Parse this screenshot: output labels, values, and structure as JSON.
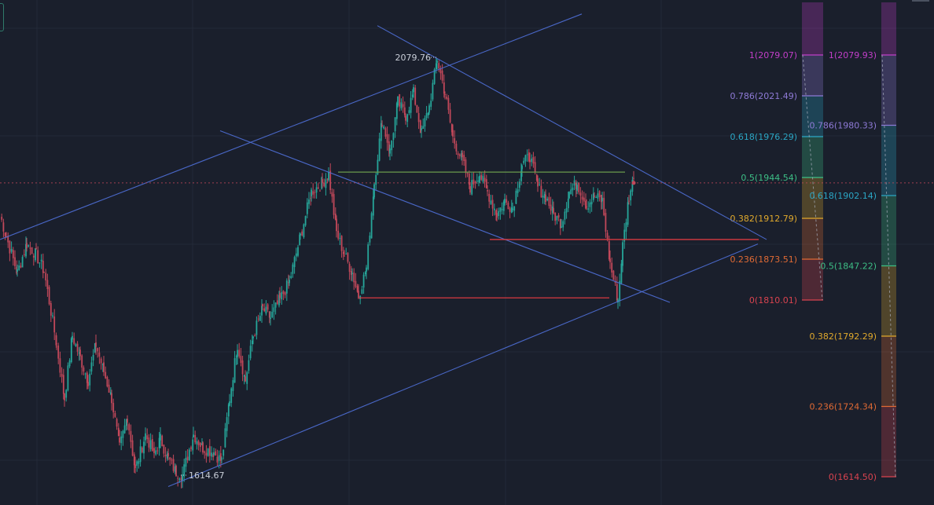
{
  "chart_data": {
    "type": "candlestick",
    "title": "",
    "xlabel": "",
    "ylabel": "",
    "ylim": [
      1600,
      2100
    ],
    "grid": true,
    "colors": {
      "background": "#1a1f2c",
      "grid": "#232a38",
      "up": "#26a69a",
      "down": "#c2485a",
      "channel": "#4f6fd8",
      "level_line": "#d93a40",
      "neckline": "#6a9a4c"
    },
    "price_annotations": {
      "high": "2079.76",
      "low": "1614.67"
    },
    "swing_points": [
      [
        0,
        1905
      ],
      [
        8,
        1880
      ],
      [
        22,
        1840
      ],
      [
        34,
        1872
      ],
      [
        46,
        1860
      ],
      [
        56,
        1842
      ],
      [
        72,
        1760
      ],
      [
        82,
        1700
      ],
      [
        92,
        1770
      ],
      [
        102,
        1745
      ],
      [
        112,
        1720
      ],
      [
        122,
        1760
      ],
      [
        132,
        1730
      ],
      [
        142,
        1700
      ],
      [
        152,
        1645
      ],
      [
        162,
        1680
      ],
      [
        172,
        1620
      ],
      [
        185,
        1660
      ],
      [
        196,
        1638
      ],
      [
        204,
        1655
      ],
      [
        214,
        1633
      ],
      [
        224,
        1618
      ],
      [
        232,
        1615
      ],
      [
        246,
        1660
      ],
      [
        258,
        1645
      ],
      [
        272,
        1640
      ],
      [
        282,
        1630
      ],
      [
        292,
        1700
      ],
      [
        302,
        1760
      ],
      [
        312,
        1720
      ],
      [
        322,
        1770
      ],
      [
        334,
        1800
      ],
      [
        344,
        1790
      ],
      [
        356,
        1810
      ],
      [
        368,
        1830
      ],
      [
        382,
        1880
      ],
      [
        396,
        1930
      ],
      [
        410,
        1940
      ],
      [
        418,
        1950
      ],
      [
        428,
        1885
      ],
      [
        438,
        1860
      ],
      [
        448,
        1840
      ],
      [
        456,
        1814
      ],
      [
        466,
        1845
      ],
      [
        476,
        1940
      ],
      [
        486,
        2010
      ],
      [
        496,
        1975
      ],
      [
        506,
        2030
      ],
      [
        516,
        2015
      ],
      [
        526,
        2040
      ],
      [
        536,
        1995
      ],
      [
        546,
        2025
      ],
      [
        556,
        2078
      ],
      [
        566,
        2040
      ],
      [
        576,
        1990
      ],
      [
        588,
        1965
      ],
      [
        598,
        1935
      ],
      [
        610,
        1950
      ],
      [
        620,
        1930
      ],
      [
        632,
        1905
      ],
      [
        642,
        1920
      ],
      [
        652,
        1912
      ],
      [
        664,
        1960
      ],
      [
        674,
        1970
      ],
      [
        684,
        1935
      ],
      [
        694,
        1925
      ],
      [
        704,
        1905
      ],
      [
        714,
        1895
      ],
      [
        724,
        1930
      ],
      [
        734,
        1940
      ],
      [
        746,
        1915
      ],
      [
        756,
        1925
      ],
      [
        766,
        1920
      ],
      [
        776,
        1850
      ],
      [
        786,
        1810
      ],
      [
        792,
        1870
      ],
      [
        800,
        1925
      ],
      [
        806,
        1945
      ]
    ],
    "channels": [
      {
        "name": "ascending-upper",
        "points": [
          [
            0,
            1877
          ],
          [
            740,
            2128
          ]
        ]
      },
      {
        "name": "ascending-lower",
        "points": [
          [
            214,
            1602
          ],
          [
            964,
            1872
          ]
        ]
      },
      {
        "name": "descending-upper",
        "points": [
          [
            480,
            2115
          ],
          [
            975,
            1877
          ]
        ]
      },
      {
        "name": "descending-mid",
        "points": [
          [
            280,
            1998
          ],
          [
            852,
            1807
          ]
        ]
      }
    ],
    "horizontal_levels": [
      {
        "name": "neckline",
        "y": 1952,
        "x": [
          430,
          795
        ]
      },
      {
        "name": "resistance",
        "y": 1877,
        "x": [
          623,
          965
        ]
      },
      {
        "name": "support",
        "y": 1812,
        "x": [
          457,
          775
        ]
      }
    ],
    "current_price": 1940,
    "fib_left": {
      "price_range": [
        1810,
        2080
      ],
      "levels": [
        {
          "ratio": "1",
          "label": "1(2079.07)",
          "color": "#c23ec9"
        },
        {
          "ratio": "0.786",
          "label": "0.786(2021.49)",
          "color": "#8e7ad6"
        },
        {
          "ratio": "0.618",
          "label": "0.618(1976.29)",
          "color": "#2ba6c4"
        },
        {
          "ratio": "0.5",
          "label": "0.5(1944.54)",
          "color": "#3dbf86"
        },
        {
          "ratio": "0.382",
          "label": "0.382(1912.79)",
          "color": "#e0a92c"
        },
        {
          "ratio": "0.236",
          "label": "0.236(1873.51)",
          "color": "#e06a34"
        },
        {
          "ratio": "0",
          "label": "0(1810.01)",
          "color": "#d9434f"
        }
      ]
    },
    "fib_right": {
      "price_range": [
        1614,
        2080
      ],
      "levels": [
        {
          "ratio": "1",
          "label": "1(2079.93)",
          "color": "#c23ec9"
        },
        {
          "ratio": "0.786",
          "label": "0.786(1980.33)",
          "color": "#8e7ad6"
        },
        {
          "ratio": "0.618",
          "label": "0.618(1902.14)",
          "color": "#2ba6c4"
        },
        {
          "ratio": "0.5",
          "label": "0.5(1847.22)",
          "color": "#3dbf86"
        },
        {
          "ratio": "0.382",
          "label": "0.382(1792.29)",
          "color": "#e0a92c"
        },
        {
          "ratio": "0.236",
          "label": "0.236(1724.34)",
          "color": "#e06a34"
        },
        {
          "ratio": "0",
          "label": "0(1614.50)",
          "color": "#d9434f"
        }
      ]
    }
  }
}
